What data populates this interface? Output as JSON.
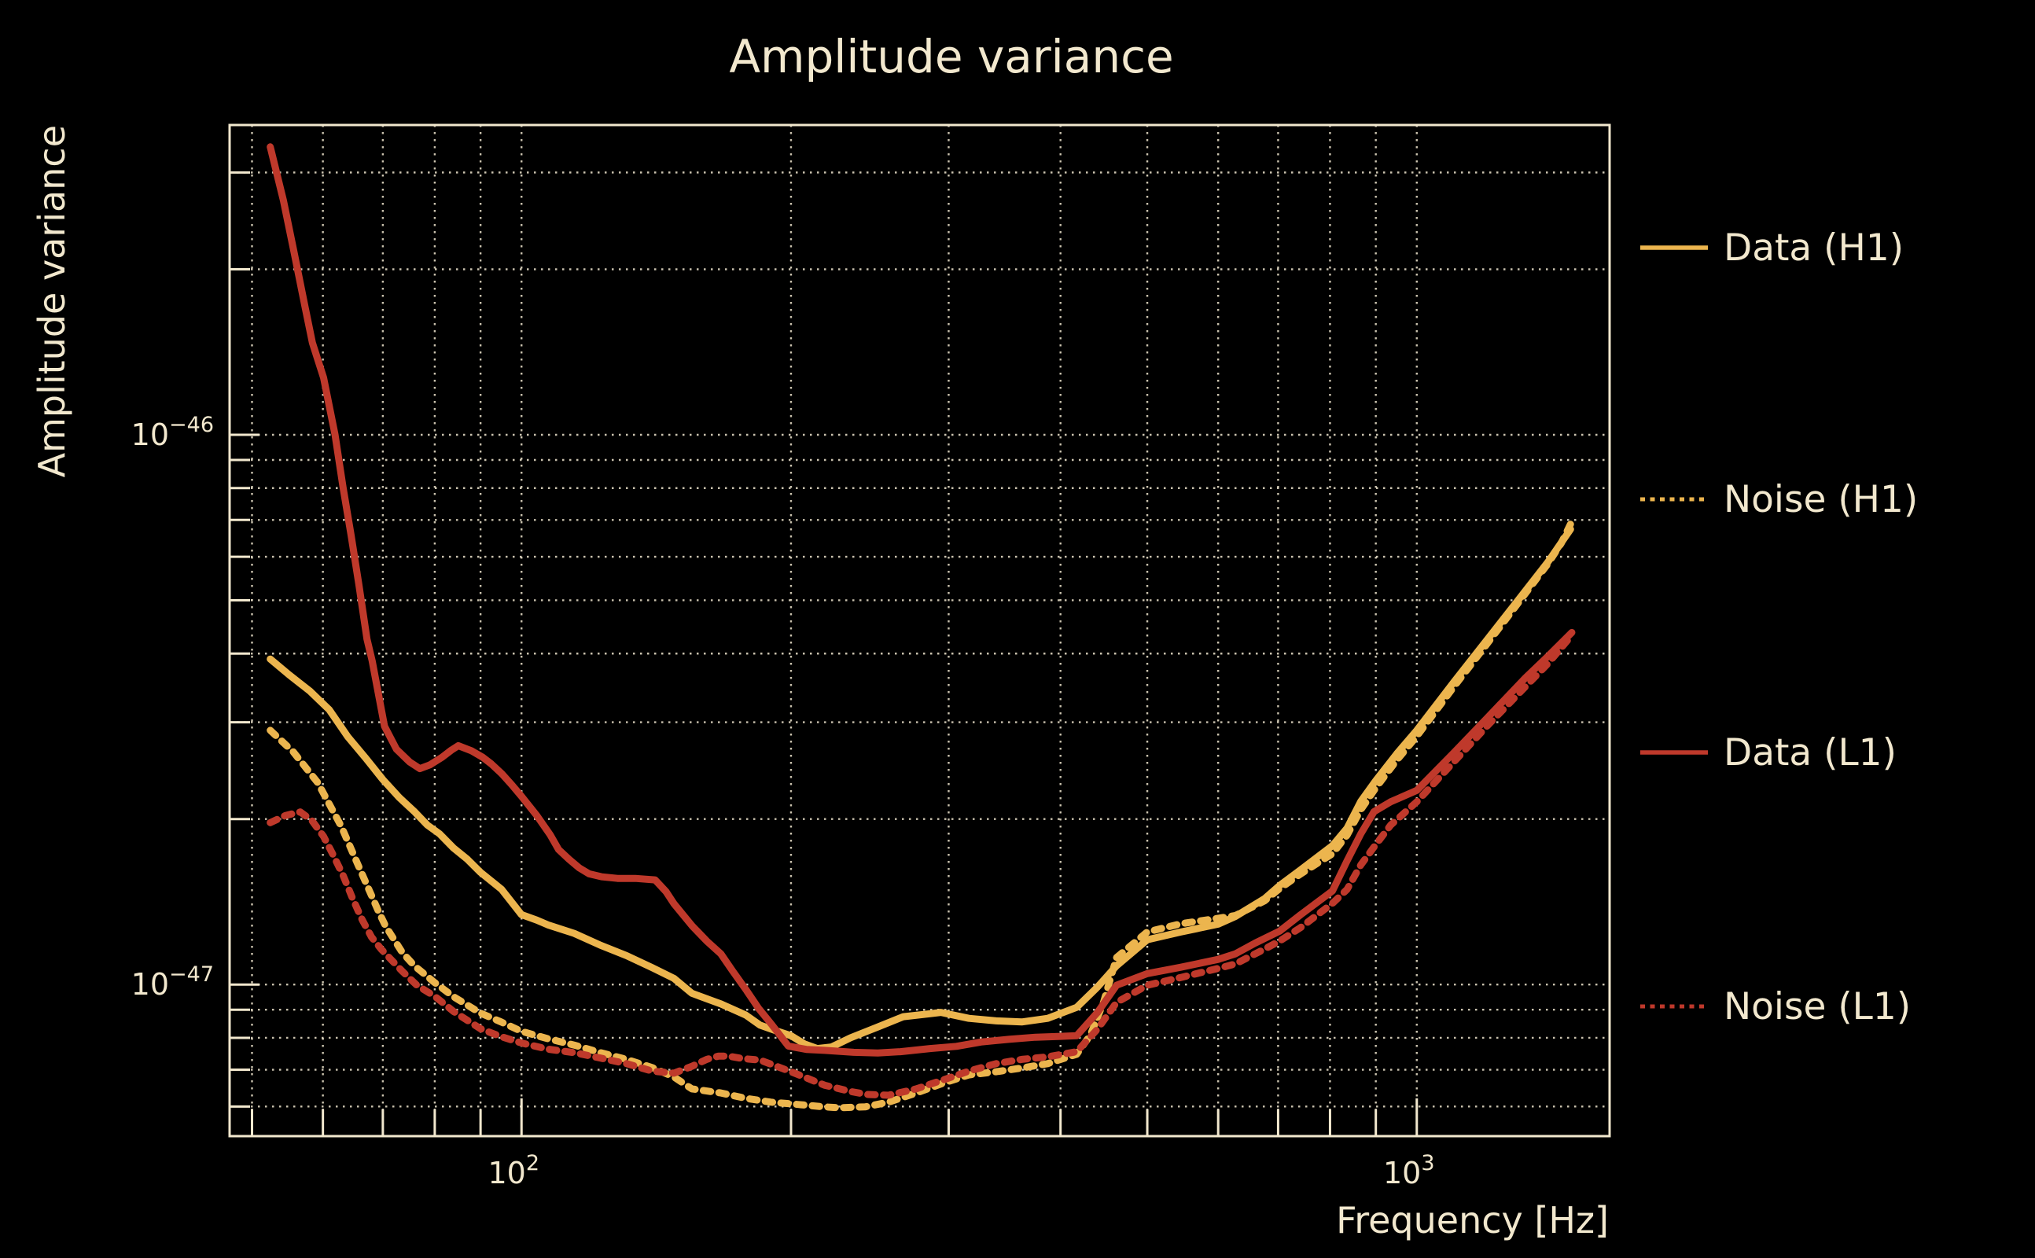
{
  "title": "Amplitude variance",
  "colors": {
    "background": "#000000",
    "text": "#f2e8ce",
    "grid": "#efe6ce",
    "gold": "#ecb54e",
    "red": "#bf392b"
  },
  "legend": [
    {
      "label": "Data (H1)",
      "color": "#ecb54e",
      "style": "solid"
    },
    {
      "label": "Noise (H1)",
      "color": "#ecb54e",
      "style": "dotted"
    },
    {
      "label": "Data (L1)",
      "color": "#bf392b",
      "style": "solid"
    },
    {
      "label": "Noise (L1)",
      "color": "#bf392b",
      "style": "dotted"
    }
  ],
  "chart_data": {
    "type": "line",
    "title": "Amplitude variance",
    "xlabel": "Frequency [Hz]",
    "ylabel": "Amplitude variance",
    "grid": "dotted, all major and minor log gridlines",
    "legend_position": "outside right",
    "x_axis": {
      "scale": "log",
      "min": 47.2,
      "max": 1642,
      "unit": "Hz",
      "major_ticks": [
        {
          "value": 100,
          "base": "10",
          "exp": "2"
        },
        {
          "value": 1000,
          "base": "10",
          "exp": "3"
        }
      ]
    },
    "y_axis": {
      "scale": "log",
      "min": 5.3e-48,
      "max": 3.66e-46,
      "major_ticks": [
        {
          "value": 1e-46,
          "base": "10",
          "exp": "−46"
        },
        {
          "value": 1e-47,
          "base": "10",
          "exp": "−47"
        }
      ]
    },
    "values_unit": "points are [frequency_Hz, amplitude_variance_in_1e-48]",
    "series": [
      {
        "name": "Data (H1)",
        "color": "#ecb54e",
        "style": "solid",
        "points": [
          [
            52.4,
            39.1
          ],
          [
            55,
            36.6
          ],
          [
            58,
            34.2
          ],
          [
            61,
            31.6
          ],
          [
            64,
            28.2
          ],
          [
            67,
            25.8
          ],
          [
            70,
            23.6
          ],
          [
            73,
            21.9
          ],
          [
            76,
            20.6
          ],
          [
            78.5,
            19.5
          ],
          [
            81,
            18.8
          ],
          [
            84,
            17.7
          ],
          [
            87,
            16.9
          ],
          [
            90,
            16.0
          ],
          [
            95,
            14.9
          ],
          [
            100,
            13.4
          ],
          [
            104,
            13.1
          ],
          [
            107,
            12.84
          ],
          [
            114.5,
            12.39
          ],
          [
            122.5,
            11.79
          ],
          [
            131,
            11.29
          ],
          [
            140,
            10.73
          ],
          [
            148,
            10.26
          ],
          [
            155,
            9.64
          ],
          [
            167,
            9.22
          ],
          [
            178,
            8.8
          ],
          [
            184.6,
            8.44
          ],
          [
            192,
            8.25
          ],
          [
            200,
            8.07
          ],
          [
            207,
            7.8
          ],
          [
            214,
            7.65
          ],
          [
            222,
            7.7
          ],
          [
            233,
            8.0
          ],
          [
            250,
            8.37
          ],
          [
            267,
            8.74
          ],
          [
            286,
            8.85
          ],
          [
            294,
            8.9
          ],
          [
            316,
            8.68
          ],
          [
            339,
            8.59
          ],
          [
            362,
            8.55
          ],
          [
            387,
            8.68
          ],
          [
            417,
            9.09
          ],
          [
            440,
            9.9
          ],
          [
            462,
            10.82
          ],
          [
            500,
            12.06
          ],
          [
            545,
            12.46
          ],
          [
            600,
            12.88
          ],
          [
            627,
            13.3
          ],
          [
            676,
            14.33
          ],
          [
            703,
            15.15
          ],
          [
            742,
            16.17
          ],
          [
            805,
            17.89
          ],
          [
            836,
            19.26
          ],
          [
            866,
            21.53
          ],
          [
            900,
            23.5
          ],
          [
            950,
            26.3
          ],
          [
            1000,
            29.0
          ],
          [
            1100,
            35.5
          ],
          [
            1200,
            42.5
          ],
          [
            1300,
            50.2
          ],
          [
            1400,
            58.6
          ],
          [
            1485,
            67.3
          ]
        ]
      },
      {
        "name": "Noise (H1)",
        "color": "#ecb54e",
        "style": "dotted",
        "points": [
          [
            52.4,
            29.0
          ],
          [
            55.6,
            26.5
          ],
          [
            59.2,
            23.3
          ],
          [
            62.9,
            19.4
          ],
          [
            65.9,
            16.3
          ],
          [
            69.2,
            13.6
          ],
          [
            70.5,
            12.77
          ],
          [
            73.6,
            11.43
          ],
          [
            76,
            10.8
          ],
          [
            80,
            10.08
          ],
          [
            84,
            9.5
          ],
          [
            90,
            8.87
          ],
          [
            94.9,
            8.55
          ],
          [
            100,
            8.22
          ],
          [
            107,
            7.97
          ],
          [
            114.5,
            7.76
          ],
          [
            122.5,
            7.52
          ],
          [
            131,
            7.31
          ],
          [
            140,
            7.06
          ],
          [
            148,
            6.79
          ],
          [
            155,
            6.46
          ],
          [
            167,
            6.35
          ],
          [
            178,
            6.21
          ],
          [
            190,
            6.11
          ],
          [
            204,
            6.05
          ],
          [
            218,
            5.99
          ],
          [
            226,
            5.97
          ],
          [
            242,
            5.99
          ],
          [
            257,
            6.11
          ],
          [
            276,
            6.35
          ],
          [
            296,
            6.62
          ],
          [
            316,
            6.85
          ],
          [
            339,
            6.94
          ],
          [
            362,
            7.05
          ],
          [
            387,
            7.18
          ],
          [
            417,
            7.47
          ],
          [
            432,
            8.1
          ],
          [
            447,
            9.3
          ],
          [
            462,
            11.2
          ],
          [
            500,
            12.46
          ],
          [
            545,
            12.9
          ],
          [
            600,
            13.2
          ],
          [
            627,
            13.35
          ],
          [
            676,
            14.2
          ],
          [
            703,
            14.95
          ],
          [
            742,
            15.9
          ],
          [
            805,
            17.3
          ],
          [
            836,
            18.7
          ],
          [
            866,
            20.8
          ],
          [
            900,
            22.8
          ],
          [
            950,
            25.6
          ],
          [
            1000,
            28.3
          ],
          [
            1100,
            34.8
          ],
          [
            1200,
            41.8
          ],
          [
            1300,
            49.6
          ],
          [
            1400,
            58.2
          ],
          [
            1450,
            63.5
          ],
          [
            1485,
            68.8
          ]
        ]
      },
      {
        "name": "Data (L1)",
        "color": "#bf392b",
        "style": "solid",
        "points": [
          [
            52.4,
            334
          ],
          [
            54.2,
            267
          ],
          [
            55.7,
            215
          ],
          [
            57.3,
            171
          ],
          [
            58.4,
            147
          ],
          [
            60.1,
            127
          ],
          [
            61.9,
            100
          ],
          [
            63.2,
            80.2
          ],
          [
            64.5,
            65.8
          ],
          [
            65.8,
            53.5
          ],
          [
            67.2,
            42.5
          ],
          [
            68.1,
            38.8
          ],
          [
            70.3,
            29.5
          ],
          [
            72.5,
            26.8
          ],
          [
            75,
            25.4
          ],
          [
            77,
            24.7
          ],
          [
            79,
            25.1
          ],
          [
            81.5,
            25.9
          ],
          [
            83.5,
            26.7
          ],
          [
            85,
            27.2
          ],
          [
            88,
            26.6
          ],
          [
            90.5,
            25.9
          ],
          [
            92.5,
            25.2
          ],
          [
            95,
            24.2
          ],
          [
            97.5,
            23.1
          ],
          [
            100,
            22.0
          ],
          [
            104,
            20.3
          ],
          [
            107.7,
            18.7
          ],
          [
            110,
            17.6
          ],
          [
            113,
            16.9
          ],
          [
            116,
            16.3
          ],
          [
            119,
            15.9
          ],
          [
            123,
            15.7
          ],
          [
            128,
            15.6
          ],
          [
            134,
            15.6
          ],
          [
            141,
            15.5
          ],
          [
            145,
            14.76
          ],
          [
            148,
            14.03
          ],
          [
            155,
            12.8
          ],
          [
            161,
            12.0
          ],
          [
            167,
            11.37
          ],
          [
            172,
            10.6
          ],
          [
            178.5,
            9.74
          ],
          [
            184,
            9.05
          ],
          [
            190.5,
            8.44
          ],
          [
            198.6,
            7.73
          ],
          [
            208,
            7.62
          ],
          [
            218,
            7.59
          ],
          [
            235,
            7.53
          ],
          [
            250,
            7.51
          ],
          [
            265,
            7.55
          ],
          [
            286,
            7.65
          ],
          [
            306,
            7.72
          ],
          [
            326,
            7.86
          ],
          [
            350,
            7.95
          ],
          [
            375,
            8.02
          ],
          [
            400,
            8.05
          ],
          [
            417,
            8.07
          ],
          [
            440,
            8.9
          ],
          [
            462,
            9.97
          ],
          [
            500,
            10.47
          ],
          [
            545,
            10.75
          ],
          [
            600,
            11.11
          ],
          [
            627,
            11.37
          ],
          [
            660,
            11.9
          ],
          [
            703,
            12.51
          ],
          [
            742,
            13.4
          ],
          [
            805,
            14.8
          ],
          [
            836,
            16.8
          ],
          [
            866,
            18.8
          ],
          [
            896,
            20.64
          ],
          [
            935,
            21.5
          ],
          [
            1000,
            22.55
          ],
          [
            1100,
            26.4
          ],
          [
            1200,
            30.6
          ],
          [
            1322,
            36.1
          ],
          [
            1400,
            39.5
          ],
          [
            1490,
            43.7
          ]
        ]
      },
      {
        "name": "Noise (L1)",
        "color": "#bf392b",
        "style": "dotted",
        "points": [
          [
            52.4,
            19.7
          ],
          [
            54.5,
            20.3
          ],
          [
            56.6,
            20.6
          ],
          [
            58.3,
            19.9
          ],
          [
            60.1,
            18.6
          ],
          [
            61.5,
            17.3
          ],
          [
            63.2,
            15.8
          ],
          [
            64.7,
            14.4
          ],
          [
            66.4,
            13.1
          ],
          [
            68,
            12.2
          ],
          [
            69.7,
            11.6
          ],
          [
            71.2,
            11.18
          ],
          [
            73.6,
            10.57
          ],
          [
            76.4,
            9.97
          ],
          [
            80,
            9.52
          ],
          [
            84,
            8.93
          ],
          [
            90,
            8.31
          ],
          [
            94.9,
            8.04
          ],
          [
            100,
            7.83
          ],
          [
            107,
            7.63
          ],
          [
            114.5,
            7.52
          ],
          [
            122.5,
            7.35
          ],
          [
            131,
            7.18
          ],
          [
            140,
            6.96
          ],
          [
            148,
            6.9
          ],
          [
            155,
            7.1
          ],
          [
            161,
            7.31
          ],
          [
            166,
            7.41
          ],
          [
            170,
            7.41
          ],
          [
            177,
            7.33
          ],
          [
            184.6,
            7.29
          ],
          [
            200,
            6.94
          ],
          [
            218,
            6.56
          ],
          [
            233,
            6.39
          ],
          [
            243,
            6.31
          ],
          [
            257,
            6.29
          ],
          [
            276,
            6.46
          ],
          [
            296,
            6.71
          ],
          [
            316,
            6.96
          ],
          [
            339,
            7.18
          ],
          [
            362,
            7.31
          ],
          [
            387,
            7.39
          ],
          [
            417,
            7.55
          ],
          [
            440,
            8.3
          ],
          [
            462,
            9.28
          ],
          [
            500,
            9.97
          ],
          [
            545,
            10.3
          ],
          [
            600,
            10.7
          ],
          [
            627,
            10.9
          ],
          [
            676,
            11.6
          ],
          [
            703,
            12.0
          ],
          [
            742,
            12.7
          ],
          [
            805,
            14.05
          ],
          [
            836,
            14.9
          ],
          [
            866,
            16.5
          ],
          [
            896,
            17.8
          ],
          [
            935,
            19.5
          ],
          [
            1000,
            21.5
          ],
          [
            1100,
            25.4
          ],
          [
            1200,
            29.6
          ],
          [
            1322,
            34.8
          ],
          [
            1400,
            38.3
          ],
          [
            1490,
            43.2
          ]
        ]
      }
    ]
  }
}
